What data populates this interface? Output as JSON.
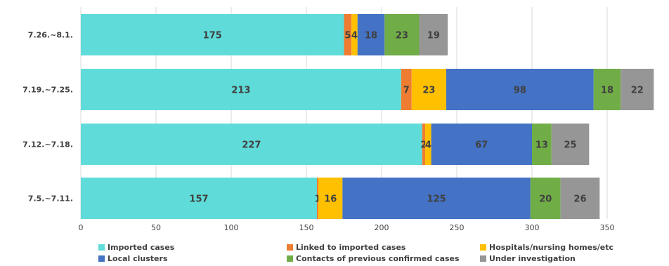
{
  "chart_data": {
    "type": "bar",
    "orientation": "horizontal",
    "stacked": true,
    "categories": [
      "7.26.~8.1.",
      "7.19.~7.25.",
      "7.12.~7.18.",
      "7.5.~7.11."
    ],
    "series": [
      {
        "name": "Imported cases",
        "color": "#5fdcd9",
        "values": [
          175,
          213,
          227,
          157
        ],
        "labels": [
          "175",
          "213",
          "227",
          "157"
        ]
      },
      {
        "name": "Linked to imported cases",
        "color": "#ee7d31",
        "values": [
          5,
          7,
          2,
          1
        ],
        "labels": [
          "5",
          "7",
          "2",
          "1"
        ]
      },
      {
        "name": "Hospitals/nursing homes/etc",
        "color": "#ffc000",
        "values": [
          4,
          23,
          4,
          16
        ],
        "labels": [
          "4",
          "23",
          "4",
          "16"
        ]
      },
      {
        "name": "Local clusters",
        "color": "#4472c4",
        "values": [
          18,
          98,
          67,
          125
        ],
        "labels": [
          "18",
          "98",
          "67",
          "125"
        ]
      },
      {
        "name": "Contacts of previous confirmed cases",
        "color": "#70ad47",
        "values": [
          23,
          18,
          13,
          20
        ],
        "labels": [
          "23",
          "18",
          "13",
          "20"
        ]
      },
      {
        "name": "Under investigation",
        "color": "#969696",
        "values": [
          19,
          22,
          25,
          26
        ],
        "labels": [
          "19",
          "22",
          "25",
          "26"
        ]
      }
    ],
    "xlim": [
      0,
      383
    ],
    "xticks": [
      0,
      50,
      100,
      150,
      200,
      250,
      300,
      350
    ],
    "legend_position": "bottom",
    "grid": "vertical"
  }
}
